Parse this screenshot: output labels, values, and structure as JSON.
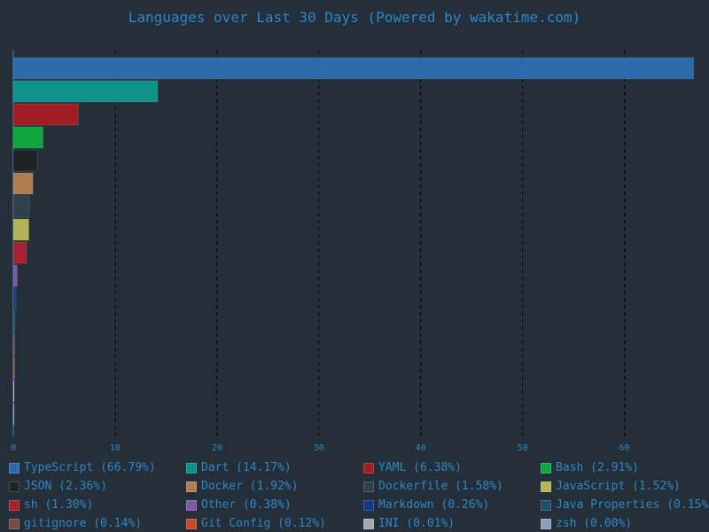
{
  "chart_data": {
    "type": "bar",
    "orientation": "horizontal",
    "title": "Languages over Last 30 Days (Powered by wakatime.com)",
    "xlim": [
      0,
      67
    ],
    "xticks": [
      0,
      10,
      20,
      30,
      40,
      50,
      60
    ],
    "grid": "vertical dashed",
    "legend_position": "bottom",
    "categories": [
      "TypeScript",
      "Dart",
      "YAML",
      "Bash",
      "JSON",
      "Docker",
      "Dockerfile",
      "JavaScript",
      "sh",
      "Other",
      "Markdown",
      "Java Properties",
      "gitignore",
      "Git Config",
      "INI",
      "zsh"
    ],
    "values": [
      66.79,
      14.17,
      6.38,
      2.91,
      2.36,
      1.92,
      1.58,
      1.52,
      1.3,
      0.38,
      0.26,
      0.15,
      0.14,
      0.12,
      0.01,
      0.0
    ],
    "colors": [
      "#2b6bab",
      "#0f9189",
      "#a21d22",
      "#12a43e",
      "#1f2328",
      "#b07d50",
      "#2e4048",
      "#b5b357",
      "#a5222e",
      "#7a5aa6",
      "#113b82",
      "#20506c",
      "#774c46",
      "#c24b28",
      "#a6aab0",
      "#8b9bb8"
    ],
    "legend_labels": [
      "TypeScript (66.79%)",
      "Dart (14.17%)",
      "YAML (6.38%)",
      "Bash (2.91%)",
      "JSON (2.36%)",
      "Docker (1.92%)",
      "Dockerfile (1.58%)",
      "JavaScript (1.52%)",
      "sh (1.30%)",
      "Other (0.38%)",
      "Markdown (0.26%)",
      "Java Properties (0.15%)",
      "gitignore (0.14%)",
      "Git Config (0.12%)",
      "INI (0.01%)",
      "zsh (0.00%)"
    ]
  }
}
